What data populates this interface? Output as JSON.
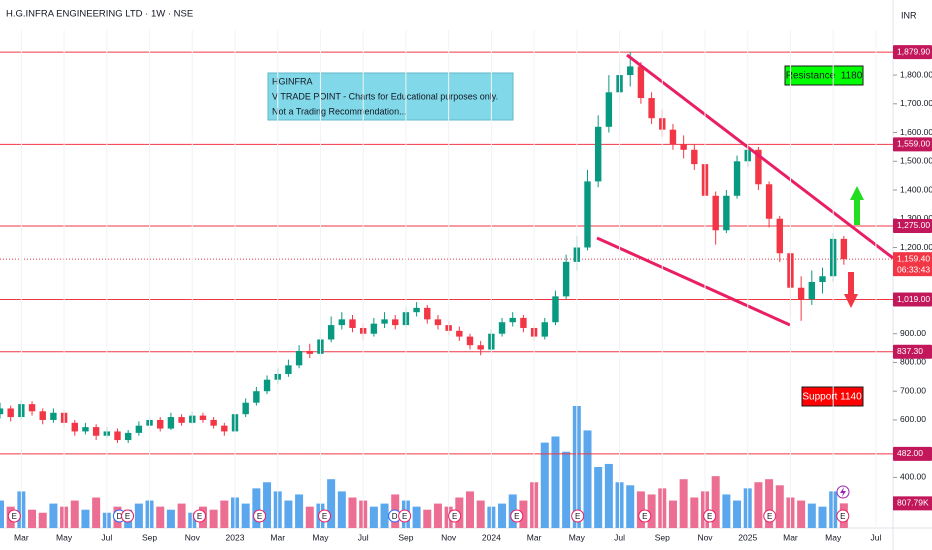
{
  "chart_data": {
    "type": "candlestick",
    "title": "H.G.INFRA ENGINEERING LTD · 1W · NSE",
    "currency": "INR",
    "annotation": [
      "HGINFRA",
      "V TRADE POINT - Charts for Educational purposes only.",
      "Not a Trading Recommendation..."
    ],
    "resistance_label": "Resistance  1180",
    "support_label": "Support 1140",
    "up_color": "#089981",
    "down_color": "#f23645",
    "volume_up_color": "#5aa7ee",
    "volume_down_color": "#ec6f93",
    "level_color": "#f23645",
    "xlim": [
      1,
      42.8
    ],
    "ylim": [
      224,
      1922
    ],
    "volume_lim": [
      0,
      16000
    ],
    "xticks": [
      {
        "value": 2,
        "label": "Mar"
      },
      {
        "value": 4,
        "label": "May"
      },
      {
        "value": 6,
        "label": "Jul"
      },
      {
        "value": 8,
        "label": "Sep"
      },
      {
        "value": 10,
        "label": "Nov"
      },
      {
        "value": 12,
        "label": "2023"
      },
      {
        "value": 14,
        "label": "Mar"
      },
      {
        "value": 16,
        "label": "May"
      },
      {
        "value": 18,
        "label": "Jul"
      },
      {
        "value": 20,
        "label": "Sep"
      },
      {
        "value": 22,
        "label": "Nov"
      },
      {
        "value": 24,
        "label": "2024"
      },
      {
        "value": 26,
        "label": "Mar"
      },
      {
        "value": 28,
        "label": "May"
      },
      {
        "value": 30,
        "label": "Jul"
      },
      {
        "value": 32,
        "label": "Sep"
      },
      {
        "value": 34,
        "label": "Nov"
      },
      {
        "value": 36,
        "label": "2025"
      },
      {
        "value": 38,
        "label": "Mar"
      },
      {
        "value": 40,
        "label": "May"
      },
      {
        "value": 42,
        "label": "Jul"
      }
    ],
    "yticks": [
      {
        "value": 1800,
        "label": "1,800.00"
      },
      {
        "value": 1700,
        "label": "1,700.00"
      },
      {
        "value": 1600,
        "label": "1,600.00"
      },
      {
        "value": 1500,
        "label": "1,500.00"
      },
      {
        "value": 1400,
        "label": "1,400.00"
      },
      {
        "value": 1300,
        "label": "1,300.00"
      },
      {
        "value": 1200,
        "label": "1,200.00"
      },
      {
        "value": 900,
        "label": "900.00"
      },
      {
        "value": 800,
        "label": "800.00"
      },
      {
        "value": 700,
        "label": "700.00"
      },
      {
        "value": 600,
        "label": "600.00"
      },
      {
        "value": 400,
        "label": "400.00"
      }
    ],
    "levels": [
      {
        "value": 1879.9,
        "label": "1,879.90"
      },
      {
        "value": 1559,
        "label": "1,559.00"
      },
      {
        "value": 1275,
        "label": "1,275.00"
      },
      {
        "value": 1019,
        "label": "1,019.00"
      },
      {
        "value": 837.3,
        "label": "837.30"
      },
      {
        "value": 482,
        "label": "482.00"
      }
    ],
    "last_price": {
      "value": 1159.4,
      "label": "1,159.40",
      "countdown": "06:33:43"
    },
    "x": [
      1,
      1.5,
      2,
      2.5,
      3,
      3.5,
      4,
      4.5,
      5,
      5.5,
      6,
      6.5,
      7,
      7.5,
      8,
      8.5,
      9,
      9.5,
      10,
      10.5,
      11,
      11.5,
      12,
      12.5,
      13,
      13.5,
      14,
      14.5,
      15,
      15.5,
      16,
      16.5,
      17,
      17.5,
      18,
      18.5,
      19,
      19.5,
      20,
      20.5,
      21,
      21.5,
      22,
      22.5,
      23,
      23.5,
      24,
      24.5,
      25,
      25.5,
      26,
      26.5,
      27,
      27.5,
      28,
      28.5,
      29,
      29.5,
      30,
      30.5,
      31,
      31.5,
      32,
      32.5,
      33,
      33.5,
      34,
      34.5,
      35,
      35.5,
      36,
      36.5,
      37,
      37.5,
      38,
      38.5,
      39,
      39.5,
      40,
      40.5
    ],
    "open": [
      620,
      640,
      610,
      655,
      630,
      600,
      625,
      590,
      560,
      575,
      545,
      560,
      530,
      555,
      580,
      600,
      570,
      610,
      590,
      615,
      600,
      580,
      560,
      620,
      660,
      700,
      740,
      760,
      790,
      840,
      830,
      880,
      930,
      950,
      920,
      900,
      935,
      950,
      930,
      975,
      990,
      950,
      930,
      910,
      890,
      860,
      845,
      900,
      940,
      955,
      920,
      890,
      940,
      1030,
      1150,
      1200,
      1430,
      1620,
      1740,
      1800,
      1830,
      1720,
      1650,
      1610,
      1560,
      1540,
      1490,
      1380,
      1260,
      1380,
      1500,
      1540,
      1420,
      1300,
      1180,
      1060,
      1020,
      1080,
      1100,
      1230
    ],
    "high": [
      660,
      650,
      670,
      665,
      640,
      640,
      635,
      600,
      590,
      585,
      575,
      570,
      565,
      595,
      615,
      610,
      625,
      620,
      630,
      625,
      610,
      590,
      630,
      675,
      715,
      755,
      780,
      810,
      860,
      865,
      900,
      960,
      975,
      965,
      935,
      955,
      975,
      965,
      995,
      1010,
      1000,
      965,
      945,
      925,
      900,
      875,
      915,
      955,
      975,
      965,
      930,
      955,
      1050,
      1175,
      1240,
      1470,
      1660,
      1800,
      1850,
      1879.9,
      1845,
      1740,
      1680,
      1630,
      1590,
      1560,
      1500,
      1395,
      1400,
      1520,
      1559,
      1550,
      1430,
      1310,
      1190,
      1100,
      1120,
      1130,
      1250,
      1240
    ],
    "low": [
      605,
      595,
      600,
      615,
      585,
      590,
      575,
      545,
      550,
      530,
      535,
      520,
      520,
      545,
      570,
      560,
      565,
      580,
      585,
      590,
      570,
      545,
      555,
      610,
      650,
      690,
      725,
      750,
      780,
      815,
      820,
      870,
      915,
      905,
      880,
      890,
      920,
      915,
      920,
      960,
      935,
      915,
      895,
      875,
      845,
      825,
      837,
      890,
      925,
      905,
      875,
      880,
      930,
      1020,
      1120,
      1190,
      1410,
      1600,
      1710,
      1760,
      1700,
      1630,
      1585,
      1540,
      1510,
      1470,
      1360,
      1210,
      1250,
      1370,
      1480,
      1400,
      1270,
      1150,
      960,
      945,
      1000,
      1040,
      1080,
      1140
    ],
    "close": [
      640,
      610,
      655,
      630,
      600,
      625,
      590,
      560,
      575,
      545,
      560,
      530,
      555,
      580,
      600,
      570,
      610,
      590,
      615,
      600,
      580,
      560,
      620,
      660,
      700,
      740,
      760,
      790,
      840,
      830,
      880,
      930,
      950,
      920,
      900,
      935,
      950,
      930,
      975,
      990,
      950,
      930,
      910,
      890,
      860,
      845,
      900,
      940,
      955,
      920,
      890,
      940,
      1030,
      1150,
      1200,
      1430,
      1620,
      1740,
      1800,
      1830,
      1720,
      1650,
      1610,
      1560,
      1540,
      1490,
      1380,
      1260,
      1380,
      1500,
      1540,
      1420,
      1300,
      1180,
      1060,
      1020,
      1080,
      1100,
      1230,
      1159.4
    ],
    "volume": {
      "values": [
        900,
        700,
        1200,
        600,
        500,
        800,
        700,
        900,
        600,
        1000,
        500,
        700,
        600,
        800,
        900,
        700,
        600,
        800,
        500,
        700,
        600,
        900,
        1000,
        800,
        1300,
        1500,
        1200,
        900,
        1100,
        700,
        800,
        1600,
        1200,
        1000,
        900,
        700,
        800,
        1100,
        900,
        700,
        600,
        800,
        700,
        1000,
        1200,
        900,
        700,
        800,
        1100,
        900,
        1500,
        2800,
        3000,
        2500,
        4000,
        3200,
        2000,
        2100,
        1500,
        1400,
        1200,
        1100,
        1300,
        900,
        1600,
        1000,
        1200,
        1700,
        1100,
        900,
        1300,
        1500,
        1600,
        1400,
        1000,
        900,
        800,
        700,
        1200,
        807.79
      ],
      "last_label": "807.79K"
    },
    "events": [
      {
        "x": 1.67,
        "label": "E"
      },
      {
        "x": 6.59,
        "label": "D"
      },
      {
        "x": 6.97,
        "label": "E"
      },
      {
        "x": 10.34,
        "label": "E"
      },
      {
        "x": 13.15,
        "label": "E"
      },
      {
        "x": 16.19,
        "label": "E"
      },
      {
        "x": 19.47,
        "label": "D"
      },
      {
        "x": 19.94,
        "label": "E"
      },
      {
        "x": 22.28,
        "label": "E"
      },
      {
        "x": 25.19,
        "label": "E"
      },
      {
        "x": 28.04,
        "label": "E"
      },
      {
        "x": 31.18,
        "label": "E"
      },
      {
        "x": 34.22,
        "label": "E"
      },
      {
        "x": 37.03,
        "label": "E"
      },
      {
        "x": 40.45,
        "label": "E"
      }
    ]
  }
}
